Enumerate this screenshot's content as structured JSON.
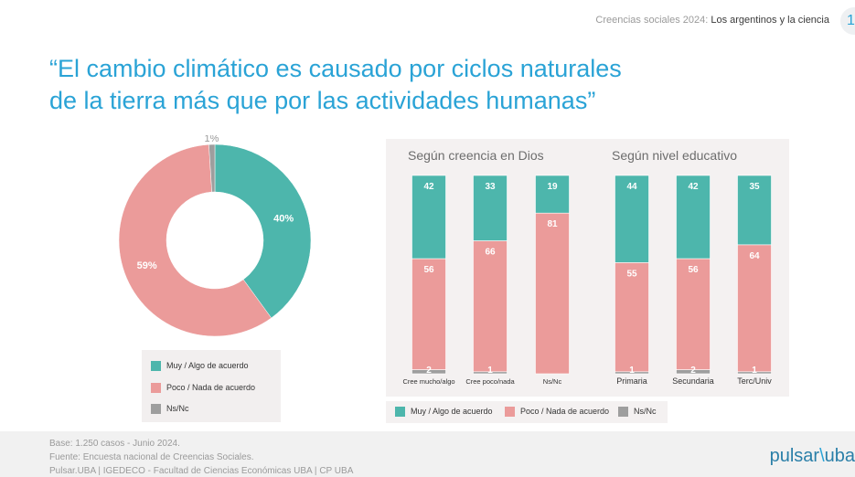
{
  "header": {
    "prefix": "Creencias sociales 2024:",
    "highlight": "Los argentinos y la ciencia",
    "page_number": "1"
  },
  "title": {
    "line1": "“El cambio climático es causado por ciclos naturales",
    "line2": "de la tierra más que por las actividades humanas”"
  },
  "colors": {
    "agree": "#4db6ac",
    "disagree": "#eb9b9a",
    "nsnc": "#9e9e9e",
    "title": "#2aa3d6"
  },
  "chart_data": [
    {
      "type": "pie",
      "donut": true,
      "categories": [
        "Muy / Algo  de acuerdo",
        "Poco / Nada de acuerdo",
        "Ns/Nc"
      ],
      "values": [
        40,
        59,
        1
      ],
      "labels": [
        "40%",
        "59%",
        "1%"
      ],
      "legend": "bottom"
    },
    {
      "type": "bar",
      "stacked": true,
      "groups": [
        {
          "title": "Según creencia en Dios",
          "categories": [
            "Cree mucho/algo",
            "Cree poco/nada",
            "Ns/Nc"
          ]
        },
        {
          "title": "Según nivel educativo",
          "categories": [
            "Primaria",
            "Secundaria",
            "Terc/Univ"
          ]
        }
      ],
      "categories": [
        "Cree mucho/algo",
        "Cree poco/nada",
        "Ns/Nc",
        "Primaria",
        "Secundaria",
        "Terc/Univ"
      ],
      "series": [
        {
          "name": "Muy / Algo de acuerdo",
          "values": [
            42,
            33,
            19,
            44,
            42,
            35
          ]
        },
        {
          "name": "Poco / Nada de acuerdo",
          "values": [
            56,
            66,
            81,
            55,
            56,
            64
          ]
        },
        {
          "name": "Ns/Nc",
          "values": [
            2,
            1,
            0,
            1,
            2,
            1
          ]
        }
      ],
      "data_labels": [
        [
          "42",
          "33",
          "19",
          "44",
          "42",
          "35"
        ],
        [
          "56",
          "66",
          "81",
          "55",
          "56",
          "64"
        ],
        [
          "2",
          "1",
          "",
          "1",
          "2",
          "1"
        ]
      ],
      "ylim": [
        0,
        100
      ],
      "legend": "bottom"
    }
  ],
  "donut_legend": [
    {
      "label": "Muy / Algo  de acuerdo"
    },
    {
      "label": "Poco / Nada de acuerdo"
    },
    {
      "label": "Ns/Nc"
    }
  ],
  "bar_legend": [
    {
      "label": "Muy / Algo de acuerdo"
    },
    {
      "label": "Poco / Nada de acuerdo"
    },
    {
      "label": "Ns/Nc"
    }
  ],
  "footer": {
    "line1": "Base: 1.250 casos - Junio 2024.",
    "line2": "Fuente: Encuesta nacional de Creencias Sociales.",
    "line3": "Pulsar.UBA | IGEDECO - Facultad de Ciencias Económicas UBA | CP UBA",
    "logo_left": "pulsar",
    "logo_mark": "\\",
    "logo_right": "uba"
  }
}
